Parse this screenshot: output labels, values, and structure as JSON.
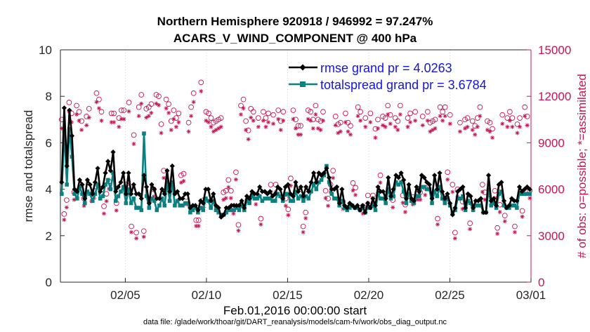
{
  "title_line1": "Northern Hemisphere 920918 / 946992 = 97.247%",
  "title_line2": "ACARS_V_WIND_COMPONENT @ 400 hPa",
  "xlabel": "Feb.01,2016 00:00:00 start",
  "datafile": "data file: /glade/work/thoar/git/DART_reanalysis/models/cam-fv/work/obs_diag_output.nc",
  "chart_data": {
    "type": "line",
    "title": "Northern Hemisphere 920918 / 946992 = 97.247%",
    "subtitle": "ACARS_V_WIND_COMPONENT @ 400 hPa",
    "xlabel": "Feb.01,2016 00:00:00 start",
    "ylabel": "rmse and totalspread",
    "y2label": "# of obs: o=possible; *=assimilated",
    "x_range_days": [
      0,
      29
    ],
    "ylim": [
      0,
      10
    ],
    "y2lim": [
      0,
      15000
    ],
    "xticks": [
      4,
      9,
      14,
      19,
      24,
      29
    ],
    "xtick_labels": [
      "02/05",
      "02/10",
      "02/15",
      "02/20",
      "02/25",
      "03/01"
    ],
    "yticks": [
      0,
      2,
      4,
      6,
      8,
      10
    ],
    "ytick_labels": [
      "0",
      "2",
      "4",
      "6",
      "8",
      "10"
    ],
    "y2ticks": [
      0,
      3000,
      6000,
      9000,
      12000,
      15000
    ],
    "y2tick_labels": [
      "0",
      "3000",
      "6000",
      "9000",
      "12000",
      "15000"
    ],
    "legend_position": "top-right",
    "series": [
      {
        "name": "rmse grand pr = 4.0263",
        "color": "#000000",
        "axis": "left",
        "marker": "diamond",
        "values": [
          4.3,
          7.5,
          5.0,
          7.4,
          6.3,
          4.0,
          3.9,
          4.4,
          4.2,
          3.6,
          4.4,
          4.2,
          3.8,
          4.3,
          4.9,
          3.9,
          4.1,
          4.7,
          5.2,
          4.8,
          5.6,
          3.9,
          4.1,
          4.3,
          4.7,
          3.8,
          4.7,
          3.8,
          4.2,
          3.8,
          3.8,
          3.6,
          4.6,
          4.1,
          3.4,
          4.2,
          4.0,
          3.6,
          3.6,
          4.0,
          3.8,
          4.8,
          3.9,
          5.0,
          3.8,
          3.9,
          3.6,
          3.6,
          3.8,
          3.8,
          3.2,
          3.3,
          3.3,
          3.1,
          3.5,
          3.4,
          4.0,
          4.0,
          3.5,
          3.8,
          3.3,
          3.2,
          2.8,
          2.9,
          3.2,
          3.2,
          3.3,
          3.3,
          3.3,
          3.3,
          3.5,
          3.2,
          3.7,
          3.6,
          3.9,
          3.8,
          3.8,
          4.1,
          3.9,
          3.9,
          3.8,
          3.9,
          3.7,
          3.8,
          4.1,
          4.0,
          3.6,
          4.1,
          4.2,
          3.8,
          3.7,
          4.3,
          3.9,
          4.1,
          3.7,
          4.1,
          3.9,
          4.3,
          4.7,
          4.3,
          4.7,
          4.6,
          4.7,
          4.9,
          4.5,
          4.0,
          4.0,
          4.1,
          3.4,
          4.0,
          3.3,
          3.2,
          3.4,
          3.3,
          3.2,
          3.3,
          3.1,
          3.3,
          3.0,
          3.4,
          3.2,
          3.6,
          3.3,
          4.1,
          3.9,
          3.9,
          3.6,
          4.5,
          3.7,
          4.0,
          4.6,
          4.5,
          4.7,
          4.4,
          3.6,
          4.2,
          3.6,
          3.5,
          4.1,
          3.9,
          4.6,
          4.5,
          4.3,
          4.2,
          3.6,
          4.6,
          4.0,
          4.7,
          3.9,
          3.6,
          3.8,
          3.4,
          2.9,
          3.2,
          3.9,
          4.0,
          4.1,
          3.2,
          3.8,
          3.7,
          3.2,
          3.5,
          3.5,
          3.6,
          3.0,
          3.0,
          4.6,
          3.5,
          3.6,
          3.3,
          4.2,
          4.3,
          3.5,
          3.2,
          3.3,
          3.6,
          3.5,
          3.5,
          4.1,
          3.9,
          4.0,
          4.1,
          4.0
        ]
      },
      {
        "name": "totalspread grand pr = 3.6784",
        "color": "#0a8080",
        "axis": "left",
        "marker": "square",
        "values": [
          3.8,
          6.5,
          4.2,
          6.6,
          5.4,
          3.8,
          3.6,
          4.1,
          3.8,
          3.4,
          3.9,
          3.8,
          3.5,
          3.8,
          4.2,
          3.6,
          3.7,
          4.2,
          4.4,
          4.0,
          4.7,
          3.5,
          3.7,
          3.9,
          4.1,
          3.4,
          4.0,
          3.4,
          3.6,
          3.2,
          3.2,
          3.1,
          6.4,
          3.7,
          3.2,
          3.6,
          3.5,
          3.1,
          3.3,
          3.6,
          3.3,
          4.3,
          3.5,
          4.3,
          3.3,
          3.5,
          3.3,
          3.3,
          3.4,
          3.4,
          3.0,
          3.1,
          3.2,
          3.0,
          3.2,
          3.1,
          3.6,
          3.5,
          3.2,
          3.5,
          3.1,
          3.0,
          2.9,
          2.9,
          3.0,
          3.1,
          3.1,
          3.1,
          3.2,
          3.1,
          3.3,
          3.1,
          3.5,
          3.4,
          3.7,
          3.6,
          3.6,
          3.7,
          3.5,
          3.6,
          3.6,
          3.6,
          3.5,
          3.5,
          3.8,
          3.7,
          3.5,
          3.8,
          3.8,
          3.5,
          3.5,
          3.9,
          3.6,
          3.7,
          3.5,
          3.7,
          3.6,
          3.9,
          4.2,
          4.0,
          4.3,
          4.4,
          4.6,
          5.0,
          4.3,
          3.8,
          3.6,
          3.6,
          3.3,
          3.5,
          3.2,
          3.1,
          3.2,
          3.3,
          3.2,
          3.2,
          3.1,
          3.2,
          3.0,
          3.2,
          3.2,
          3.3,
          3.1,
          3.8,
          3.6,
          3.6,
          3.4,
          4.0,
          3.6,
          3.7,
          4.3,
          4.2,
          4.3,
          3.9,
          3.4,
          3.8,
          3.5,
          3.4,
          3.7,
          3.7,
          4.1,
          4.1,
          4.0,
          4.0,
          3.4,
          3.9,
          3.7,
          4.1,
          3.6,
          3.4,
          3.6,
          3.3,
          3.0,
          3.1,
          3.6,
          3.6,
          3.7,
          3.1,
          3.5,
          3.4,
          3.1,
          3.3,
          3.3,
          3.3,
          3.0,
          3.0,
          4.0,
          3.3,
          3.4,
          3.2,
          3.8,
          3.9,
          3.3,
          3.2,
          3.2,
          3.3,
          3.3,
          3.2,
          3.8,
          3.8,
          3.8,
          3.8,
          3.8
        ]
      },
      {
        "name": "possible obs (o)",
        "color": "#c8144f",
        "axis": "right",
        "marker": "circle",
        "values": [
          10500,
          4400,
          5300,
          11600,
          10900,
          5800,
          11400,
          11000,
          10400,
          5400,
          10700,
          11200,
          5700,
          5900,
          12200,
          11800,
          11000,
          4900,
          5700,
          6500,
          10900,
          10900,
          5100,
          10600,
          11100,
          11100,
          6300,
          11600,
          3600,
          9500,
          3200,
          11300,
          12100,
          3300,
          11200,
          11300,
          11500,
          6000,
          12100,
          12000,
          10200,
          7200,
          11800,
          11500,
          10400,
          11100,
          10600,
          10900,
          6900,
          7000,
          5500,
          10300,
          11300,
          12200,
          4000,
          4000,
          12900,
          5300,
          11000,
          10900,
          10600,
          10300,
          10400,
          10500,
          10600,
          5800,
          5900,
          6600,
          5900,
          4900,
          7100,
          3700,
          11400,
          11800,
          10400,
          9800,
          11200,
          11000,
          5500,
          10600,
          4100,
          11000,
          10600,
          10900,
          6300,
          10800,
          6300,
          11100,
          10400,
          11000,
          5400,
          4700,
          6700,
          11100,
          10500,
          10100,
          10100,
          3600,
          4500,
          11100,
          11000,
          10500,
          11400,
          10500,
          10400,
          11000,
          5900,
          5400,
          6300,
          7200,
          10700,
          10200,
          10300,
          5200,
          10900,
          10300,
          10100,
          6400,
          6100,
          11300,
          11000,
          4900,
          10600,
          5600,
          10900,
          5600,
          9900,
          10500,
          6900,
          10700,
          10600,
          11400,
          10800,
          5300,
          10600,
          10400,
          11400,
          5600,
          5000,
          10600,
          10900,
          5500,
          11000,
          5800,
          5800,
          10700,
          6100,
          11000,
          10300,
          10400,
          10500,
          4100,
          11300,
          11000,
          11300,
          7100,
          10800,
          6300,
          3200,
          6000,
          10300,
          5200,
          10500,
          10600,
          3800,
          10400,
          10100,
          10600,
          11300,
          6300,
          5800,
          10400,
          10300,
          9900,
          5900,
          3500,
          5000,
          10800,
          4300,
          10600,
          11000,
          10600,
          3600,
          10200,
          10600,
          4600,
          11300,
          10700,
          5900
        ]
      },
      {
        "name": "assimilated obs (*)",
        "color": "#c8144f",
        "axis": "right",
        "marker": "asterisk",
        "values": [
          10200,
          4300,
          5100,
          11300,
          10600,
          5600,
          11100,
          10700,
          10100,
          5200,
          10400,
          10900,
          5500,
          5700,
          11900,
          11500,
          10700,
          4700,
          5500,
          6300,
          10600,
          10600,
          4900,
          10300,
          10800,
          10800,
          6100,
          11300,
          3500,
          9200,
          3100,
          11000,
          11800,
          3200,
          10900,
          11000,
          11200,
          5800,
          11800,
          11700,
          9900,
          7000,
          11500,
          11200,
          10100,
          10800,
          10300,
          10600,
          6700,
          6800,
          5300,
          10000,
          11000,
          11900,
          3900,
          3900,
          12600,
          5100,
          10700,
          10600,
          10300,
          10000,
          10100,
          10200,
          10300,
          5600,
          5700,
          6400,
          5700,
          4700,
          6900,
          3600,
          11100,
          11500,
          10100,
          9500,
          10900,
          10700,
          5300,
          10300,
          4000,
          10700,
          10300,
          10600,
          6100,
          10500,
          6100,
          10800,
          10100,
          10700,
          5200,
          4600,
          6500,
          10800,
          10200,
          9800,
          9800,
          3500,
          4400,
          10800,
          10700,
          10200,
          11100,
          10200,
          10100,
          10700,
          5700,
          5200,
          6100,
          7000,
          10400,
          9900,
          10000,
          5000,
          10600,
          10000,
          9800,
          6200,
          5900,
          11000,
          10700,
          4700,
          10300,
          5400,
          10600,
          5400,
          9600,
          10200,
          6700,
          10400,
          10300,
          11100,
          10500,
          5100,
          10300,
          10100,
          11100,
          5400,
          4800,
          10300,
          10600,
          5300,
          10700,
          5600,
          5600,
          10400,
          5900,
          10700,
          10000,
          10100,
          10200,
          4000,
          11000,
          10700,
          11000,
          6900,
          10500,
          6100,
          3100,
          5800,
          10000,
          5000,
          10200,
          10300,
          3700,
          10100,
          9800,
          10300,
          11000,
          6100,
          5600,
          10100,
          10000,
          9600,
          5700,
          3400,
          4800,
          10500,
          4200,
          10300,
          10700,
          10300,
          3500,
          9900,
          10300,
          4500,
          11000,
          10400,
          5700
        ]
      }
    ]
  }
}
